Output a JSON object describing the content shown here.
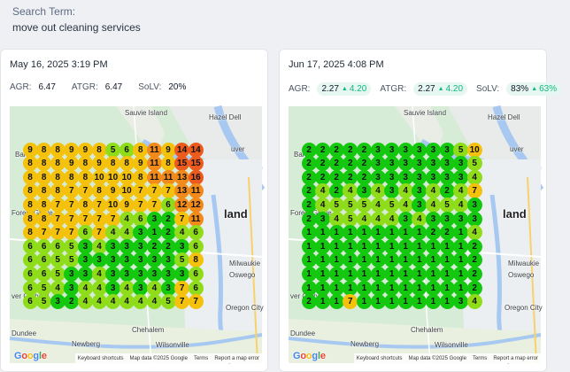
{
  "search": {
    "label": "Search Term:",
    "value": "move out cleaning services"
  },
  "metric_labels": {
    "agr": "AGR:",
    "atgr": "ATGR:",
    "solv": "SoLV:"
  },
  "cards": [
    {
      "date": "May 16, 2025 3:19 PM",
      "agr": "6.47",
      "atgr": "6.47",
      "solv": "20%",
      "grid": [
        [
          "9",
          "8",
          "8",
          "9",
          "9",
          "8",
          "5",
          "6",
          "8",
          "11",
          "9",
          "14",
          "14"
        ],
        [
          "8",
          "8",
          "8",
          "9",
          "8",
          "9",
          "8",
          "8",
          "9",
          "11",
          "8",
          "15",
          "15"
        ],
        [
          "8",
          "8",
          "8",
          "8",
          "8",
          "10",
          "10",
          "10",
          "8",
          "11",
          "11",
          "13",
          "16"
        ],
        [
          "8",
          "8",
          "8",
          "7",
          "7",
          "8",
          "9",
          "10",
          "7",
          "7",
          "7",
          "13",
          "11"
        ],
        [
          "8",
          "8",
          "7",
          "7",
          "8",
          "7",
          "10",
          "9",
          "7",
          "7",
          "6",
          "12",
          "12"
        ],
        [
          "8",
          "8",
          "7",
          "7",
          "7",
          "7",
          "7",
          "4",
          "6",
          "3",
          "2",
          "7",
          "11"
        ],
        [
          "8",
          "7",
          "7",
          "7",
          "6",
          "7",
          "4",
          "4",
          "3",
          "1",
          "2",
          "4",
          "6"
        ],
        [
          "6",
          "6",
          "6",
          "5",
          "3",
          "4",
          "3",
          "3",
          "3",
          "2",
          "2",
          "3",
          "6"
        ],
        [
          "6",
          "6",
          "5",
          "5",
          "3",
          "3",
          "3",
          "3",
          "3",
          "3",
          "3",
          "5",
          "8"
        ],
        [
          "6",
          "6",
          "5",
          "3",
          "3",
          "4",
          "3",
          "3",
          "3",
          "3",
          "3",
          "3",
          "6"
        ],
        [
          "6",
          "5",
          "4",
          "3",
          "4",
          "4",
          "3",
          "4",
          "3",
          "4",
          "3",
          "7",
          "6"
        ],
        [
          "6",
          "5",
          "3",
          "2",
          "4",
          "4",
          "4",
          "4",
          "4",
          "4",
          "5",
          "7",
          "7"
        ]
      ]
    },
    {
      "date": "Jun 17, 2025 4:08 PM",
      "agr": "2.27",
      "agr_delta": "4.20",
      "atgr": "2.27",
      "atgr_delta": "4.20",
      "solv": "83%",
      "solv_delta": "63%",
      "grid": [
        [
          "2",
          "2",
          "2",
          "2",
          "2",
          "3",
          "3",
          "3",
          "3",
          "3",
          "3",
          "5",
          "10"
        ],
        [
          "2",
          "2",
          "2",
          "2",
          "2",
          "3",
          "3",
          "3",
          "3",
          "3",
          "3",
          "3",
          "5"
        ],
        [
          "2",
          "2",
          "2",
          "2",
          "2",
          "3",
          "3",
          "3",
          "3",
          "3",
          "3",
          "3",
          "4"
        ],
        [
          "2",
          "4",
          "2",
          "4",
          "3",
          "4",
          "3",
          "4",
          "3",
          "4",
          "2",
          "4",
          "7"
        ],
        [
          "2",
          "4",
          "5",
          "5",
          "5",
          "4",
          "5",
          "4",
          "3",
          "4",
          "5",
          "4",
          "3"
        ],
        [
          "2",
          "3",
          "4",
          "5",
          "4",
          "4",
          "4",
          "3",
          "4",
          "3",
          "3",
          "3",
          "3"
        ],
        [
          "1",
          "1",
          "1",
          "1",
          "1",
          "1",
          "1",
          "1",
          "1",
          "2",
          "2",
          "1",
          "4"
        ],
        [
          "1",
          "1",
          "1",
          "1",
          "1",
          "1",
          "1",
          "1",
          "1",
          "1",
          "1",
          "1",
          "2"
        ],
        [
          "1",
          "1",
          "1",
          "1",
          "1",
          "1",
          "1",
          "1",
          "1",
          "1",
          "1",
          "1",
          "2"
        ],
        [
          "1",
          "1",
          "1",
          "1",
          "1",
          "1",
          "1",
          "1",
          "1",
          "1",
          "1",
          "1",
          "2"
        ],
        [
          "1",
          "1",
          "1",
          "1",
          "1",
          "1",
          "1",
          "1",
          "1",
          "1",
          "1",
          "1",
          "2"
        ],
        [
          "2",
          "1",
          "1",
          "7",
          "1",
          "1",
          "1",
          "1",
          "1",
          "1",
          "1",
          "3",
          "4"
        ]
      ]
    }
  ],
  "map_labels": {
    "sauvie": "Sauvie Island",
    "hazel": "Hazel Dell",
    "vancouver": "uver",
    "banks": "Banks",
    "forest": "Forest Grove",
    "land": "land",
    "milwaukie": "Milwaukie",
    "oswego": "Oswego",
    "orchard": "ver Orchard",
    "oregon": "Oregon City",
    "dundee": "Dundee",
    "chehalem": "Chehalem",
    "newberg": "Newberg",
    "wilsonville": "Wilsonville"
  },
  "map_footer": {
    "keyboard": "Keyboard shortcuts",
    "mapdata": "Map data ©2025 Google",
    "terms": "Terms",
    "report": "Report a map error"
  },
  "google_logo": [
    "G",
    "o",
    "o",
    "g",
    "l",
    "e"
  ],
  "rank_colors": {
    "1-3": "#14c80f",
    "4-6": "#8fdc1a",
    "7-10": "#f4c20d",
    "11-13": "#f28a1a",
    "14+": "#ec5a1e"
  }
}
